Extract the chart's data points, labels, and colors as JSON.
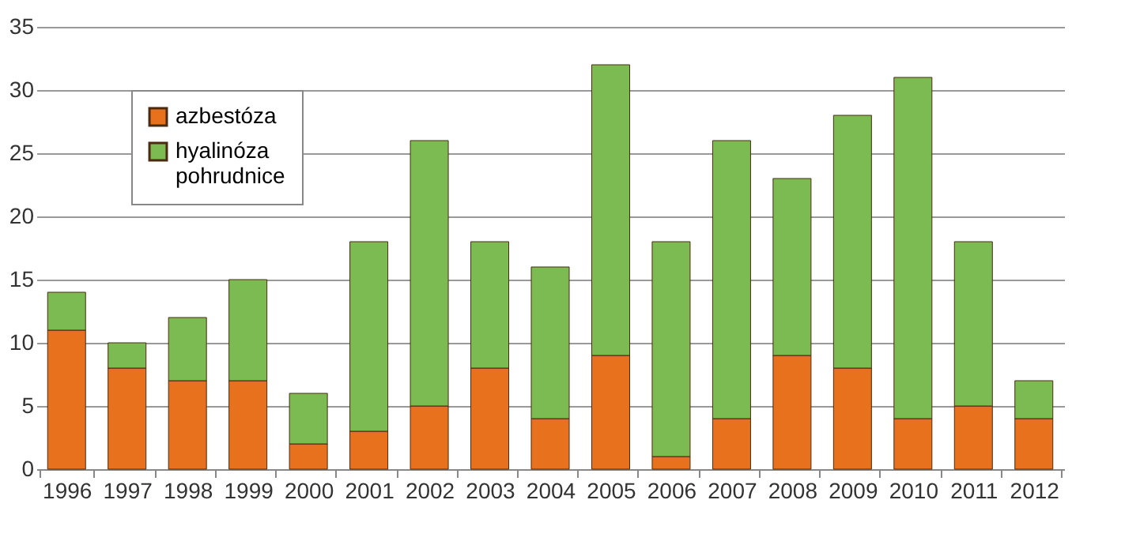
{
  "chart_data": {
    "type": "bar",
    "stacked": true,
    "categories": [
      "1996",
      "1997",
      "1998",
      "1999",
      "2000",
      "2001",
      "2002",
      "2003",
      "2004",
      "2005",
      "2006",
      "2007",
      "2008",
      "2009",
      "2010",
      "2011",
      "2012"
    ],
    "series": [
      {
        "name": "azbestóza",
        "color": "#e8711e",
        "values": [
          11,
          8,
          7,
          7,
          2,
          3,
          5,
          8,
          4,
          9,
          1,
          4,
          9,
          8,
          4,
          5,
          4
        ]
      },
      {
        "name": "hyalinóza pohrudnice",
        "color": "#7cbb52",
        "values": [
          3,
          2,
          5,
          8,
          4,
          15,
          21,
          10,
          12,
          23,
          17,
          22,
          14,
          20,
          27,
          13,
          3
        ]
      }
    ],
    "ylim": [
      0,
      35
    ],
    "yticks": [
      0,
      5,
      10,
      15,
      20,
      25,
      30,
      35
    ],
    "grid": "y",
    "legend": "top left"
  }
}
